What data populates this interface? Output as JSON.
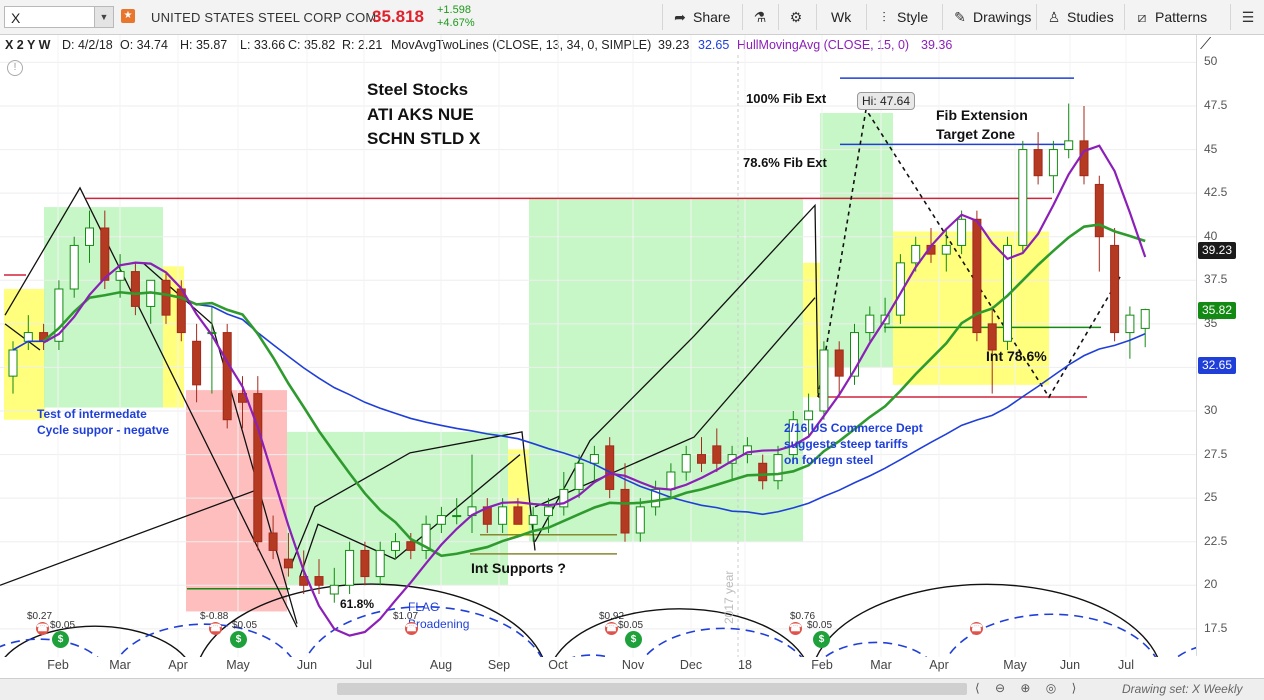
{
  "header": {
    "symbol": "X",
    "company": "UNITED STATES STEEL CORP COM",
    "price": "35.818",
    "change": "+1.598",
    "change_pct": "+4.67%",
    "buttons": [
      "Share",
      "Wk",
      "Style",
      "Drawings",
      "Studies",
      "Patterns"
    ]
  },
  "infobar": {
    "timeframe": "X 2 Y W",
    "date": "D: 4/2/18",
    "high": "H: 35.87",
    "open": "O: 34.74",
    "low": "L: 33.66",
    "close": "C: 35.82",
    "range": "R: 2.21",
    "ma_label": "MovAvgTwoLines (CLOSE, 13, 34, 0, SIMPLE)",
    "ma_v1": "39.23",
    "ma_v2": "32.65",
    "hull_label": "HullMovingAvg (CLOSE, 15, 0)",
    "hull_v": "39.36"
  },
  "price_tags": [
    {
      "value": "39.23",
      "color": "#1b1b1b",
      "y": 39.23
    },
    {
      "value": "35.82",
      "color": "#138a13",
      "y": 35.82
    },
    {
      "value": "32.65",
      "color": "#1f3fd8",
      "y": 32.65
    }
  ],
  "annotations": {
    "title_1": "Steel Stocks",
    "title_2": "ATI AKS NUE",
    "title_3": "SCHN STLD X",
    "fib100": "100% Fib Ext",
    "fib786": "78.6% Fib Ext",
    "hi": "Hi: 47.64",
    "fib_zone_1": "Fib Extension",
    "fib_zone_2": "Target Zone",
    "int786": "Int 78.6%",
    "test_1": "Test of intermedate",
    "test_2": "Cycle suppor - negatve",
    "commerce_1": "2/16 US Commerce Dept",
    "commerce_2": "suggests steep tariffs",
    "commerce_3": "on foriegn steel",
    "int_supports": "Int Supports ?",
    "fib618": "61.8%",
    "flag_1": "FLAG",
    "flag_2": "Broadening",
    "year_watermark": "2017 year",
    "div_labels": [
      "$0.27",
      "$0.05",
      "$-0.88",
      "$0.05",
      "$1.07",
      "$0.92",
      "$0.05",
      "$0.76",
      "$0.05"
    ]
  },
  "bottom": {
    "drawing_set": "Drawing set: X Weekly"
  },
  "chart_data": {
    "type": "candlestick",
    "y_axis": {
      "min": 16,
      "max": 51,
      "ticks": [
        17.5,
        20,
        22.5,
        25,
        27.5,
        30,
        32.5,
        35,
        37.5,
        40,
        42.5,
        45,
        47.5,
        50
      ]
    },
    "x_labels": [
      "Feb",
      "Mar",
      "Apr",
      "May",
      "Jun",
      "Jul",
      "Aug",
      "Sep",
      "Oct",
      "Nov",
      "Dec",
      "18",
      "Feb",
      "Mar",
      "Apr",
      "May",
      "Jun",
      "Jul"
    ],
    "candles": [
      {
        "o": 32,
        "h": 34,
        "l": 31,
        "c": 33.5
      },
      {
        "o": 34,
        "h": 35.5,
        "l": 33.5,
        "c": 34.5
      },
      {
        "o": 34.5,
        "h": 35,
        "l": 33.5,
        "c": 34
      },
      {
        "o": 34,
        "h": 37.5,
        "l": 33.5,
        "c": 37
      },
      {
        "o": 37,
        "h": 40,
        "l": 36.5,
        "c": 39.5
      },
      {
        "o": 39.5,
        "h": 41.5,
        "l": 38.5,
        "c": 40.5
      },
      {
        "o": 40.5,
        "h": 41.5,
        "l": 37,
        "c": 37.5
      },
      {
        "o": 37.5,
        "h": 39,
        "l": 36.5,
        "c": 38
      },
      {
        "o": 38,
        "h": 38.5,
        "l": 35.5,
        "c": 36
      },
      {
        "o": 36,
        "h": 37.5,
        "l": 35,
        "c": 37.5
      },
      {
        "o": 37.5,
        "h": 38,
        "l": 35,
        "c": 35.5
      },
      {
        "o": 37,
        "h": 37.5,
        "l": 34,
        "c": 34.5
      },
      {
        "o": 34,
        "h": 35,
        "l": 30.5,
        "c": 31.5
      },
      {
        "o": 34.5,
        "h": 36,
        "l": 31,
        "c": 34.5
      },
      {
        "o": 34.5,
        "h": 35,
        "l": 29,
        "c": 29.5
      },
      {
        "o": 31,
        "h": 32,
        "l": 29,
        "c": 30.5
      },
      {
        "o": 31,
        "h": 32,
        "l": 22,
        "c": 22.5
      },
      {
        "o": 23,
        "h": 24,
        "l": 21.5,
        "c": 22
      },
      {
        "o": 21.5,
        "h": 23,
        "l": 20.5,
        "c": 21
      },
      {
        "o": 20.5,
        "h": 22,
        "l": 19.5,
        "c": 20
      },
      {
        "o": 20.5,
        "h": 21.5,
        "l": 19.5,
        "c": 20
      },
      {
        "o": 19.5,
        "h": 21,
        "l": 19,
        "c": 20
      },
      {
        "o": 20,
        "h": 22.5,
        "l": 19.5,
        "c": 22
      },
      {
        "o": 22,
        "h": 22.5,
        "l": 20,
        "c": 20.5
      },
      {
        "o": 20.5,
        "h": 22.5,
        "l": 20,
        "c": 22
      },
      {
        "o": 22,
        "h": 23,
        "l": 21.5,
        "c": 22.5
      },
      {
        "o": 22.5,
        "h": 23,
        "l": 21.5,
        "c": 22
      },
      {
        "o": 22,
        "h": 24,
        "l": 21.5,
        "c": 23.5
      },
      {
        "o": 23.5,
        "h": 24.5,
        "l": 23,
        "c": 24
      },
      {
        "o": 24,
        "h": 25,
        "l": 23.5,
        "c": 24
      },
      {
        "o": 24,
        "h": 27.5,
        "l": 23,
        "c": 24.5
      },
      {
        "o": 24.5,
        "h": 25,
        "l": 23,
        "c": 23.5
      },
      {
        "o": 23.5,
        "h": 25,
        "l": 23,
        "c": 24.5
      },
      {
        "o": 24.5,
        "h": 25,
        "l": 23.5,
        "c": 23.5
      },
      {
        "o": 23.5,
        "h": 24.5,
        "l": 22.5,
        "c": 24
      },
      {
        "o": 24,
        "h": 25,
        "l": 23,
        "c": 24.5
      },
      {
        "o": 24.5,
        "h": 26.5,
        "l": 24,
        "c": 25.5
      },
      {
        "o": 25.5,
        "h": 27.5,
        "l": 25,
        "c": 27
      },
      {
        "o": 27,
        "h": 28,
        "l": 26,
        "c": 27.5
      },
      {
        "o": 28,
        "h": 28.5,
        "l": 25,
        "c": 25.5
      },
      {
        "o": 25.5,
        "h": 27,
        "l": 22.5,
        "c": 23
      },
      {
        "o": 23,
        "h": 25,
        "l": 22.5,
        "c": 24.5
      },
      {
        "o": 24.5,
        "h": 26,
        "l": 24,
        "c": 25.5
      },
      {
        "o": 25.5,
        "h": 27,
        "l": 25,
        "c": 26.5
      },
      {
        "o": 26.5,
        "h": 28,
        "l": 26,
        "c": 27.5
      },
      {
        "o": 27.5,
        "h": 28.5,
        "l": 26.5,
        "c": 27
      },
      {
        "o": 28,
        "h": 29,
        "l": 26.5,
        "c": 27
      },
      {
        "o": 27,
        "h": 28,
        "l": 26,
        "c": 27.5
      },
      {
        "o": 27.5,
        "h": 28.5,
        "l": 27,
        "c": 28
      },
      {
        "o": 27,
        "h": 27.5,
        "l": 25.5,
        "c": 26
      },
      {
        "o": 26,
        "h": 28,
        "l": 25.5,
        "c": 27.5
      },
      {
        "o": 27.5,
        "h": 30,
        "l": 27,
        "c": 29.5
      },
      {
        "o": 29.5,
        "h": 31,
        "l": 28.5,
        "c": 30
      },
      {
        "o": 30,
        "h": 34,
        "l": 29.5,
        "c": 33.5
      },
      {
        "o": 33.5,
        "h": 34,
        "l": 31,
        "c": 32
      },
      {
        "o": 32,
        "h": 35,
        "l": 31.5,
        "c": 34.5
      },
      {
        "o": 34.5,
        "h": 36,
        "l": 34,
        "c": 35.5
      },
      {
        "o": 35,
        "h": 36.5,
        "l": 34.5,
        "c": 35.5
      },
      {
        "o": 35.5,
        "h": 39,
        "l": 35,
        "c": 38.5
      },
      {
        "o": 38.5,
        "h": 40,
        "l": 38,
        "c": 39.5
      },
      {
        "o": 39.5,
        "h": 40.5,
        "l": 38.5,
        "c": 39
      },
      {
        "o": 39,
        "h": 40.5,
        "l": 38,
        "c": 39.5
      },
      {
        "o": 39.5,
        "h": 41.5,
        "l": 39,
        "c": 41
      },
      {
        "o": 41,
        "h": 41.5,
        "l": 34,
        "c": 34.5
      },
      {
        "o": 35,
        "h": 36,
        "l": 31,
        "c": 33.5
      },
      {
        "o": 34,
        "h": 40,
        "l": 33.5,
        "c": 39.5
      },
      {
        "o": 39.5,
        "h": 45.5,
        "l": 39,
        "c": 45
      },
      {
        "o": 45,
        "h": 46,
        "l": 43,
        "c": 43.5
      },
      {
        "o": 43.5,
        "h": 45.5,
        "l": 42.5,
        "c": 45
      },
      {
        "o": 45,
        "h": 47.64,
        "l": 44.5,
        "c": 45.5
      },
      {
        "o": 45.5,
        "h": 47.5,
        "l": 43,
        "c": 43.5
      },
      {
        "o": 43,
        "h": 43.5,
        "l": 38,
        "c": 40
      },
      {
        "o": 39.5,
        "h": 40.5,
        "l": 34,
        "c": 34.5
      },
      {
        "o": 34.5,
        "h": 36,
        "l": 33,
        "c": 35.5
      },
      {
        "o": 34.74,
        "h": 35.87,
        "l": 33.66,
        "c": 35.82
      }
    ]
  }
}
